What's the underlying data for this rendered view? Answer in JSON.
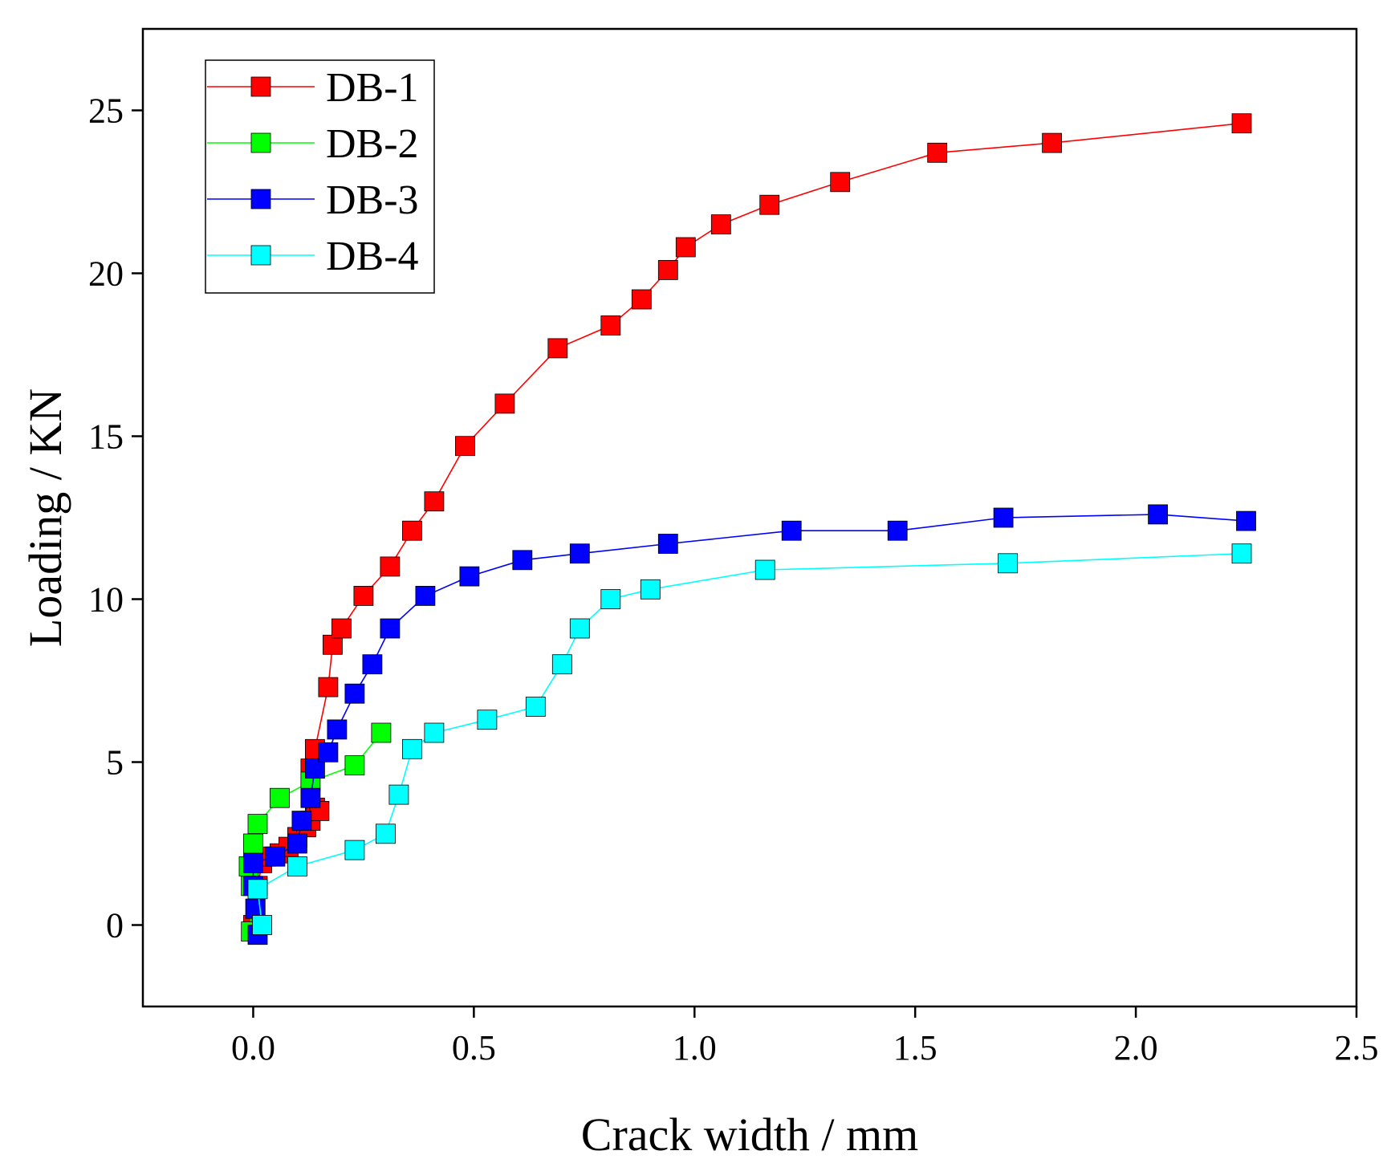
{
  "chart_data": {
    "type": "line",
    "title": "",
    "xlabel": "Crack width / mm",
    "ylabel": "Loading / KN",
    "xlim": [
      -0.25,
      2.5
    ],
    "ylim": [
      -2.5,
      27.5
    ],
    "xticks": [
      0.0,
      0.5,
      1.0,
      1.5,
      2.0,
      2.5
    ],
    "xtick_labels": [
      "0.0",
      "0.5",
      "1.0",
      "1.5",
      "2.0",
      "2.5"
    ],
    "yticks": [
      0,
      5,
      10,
      15,
      20,
      25
    ],
    "ytick_labels": [
      "0",
      "5",
      "10",
      "15",
      "20",
      "25"
    ],
    "grid": false,
    "legend_position": "top-left",
    "marker": "square",
    "series": [
      {
        "name": "DB-1",
        "color": "#ff0000",
        "x": [
          0.0,
          0.005,
          0.01,
          0.02,
          0.03,
          0.06,
          0.08,
          0.1,
          0.12,
          0.13,
          0.14,
          0.15,
          0.13,
          0.14,
          0.17,
          0.18,
          0.2,
          0.25,
          0.31,
          0.36,
          0.41,
          0.48,
          0.57,
          0.69,
          0.81,
          0.88,
          0.94,
          0.98,
          1.06,
          1.17,
          1.33,
          1.55,
          1.81,
          2.24
        ],
        "y": [
          0.0,
          0.5,
          1.2,
          1.9,
          2.1,
          2.2,
          2.4,
          2.7,
          3.0,
          3.2,
          3.6,
          3.5,
          4.8,
          5.4,
          7.3,
          8.6,
          9.1,
          10.1,
          11.0,
          12.1,
          13.0,
          14.7,
          16.0,
          17.7,
          18.4,
          19.2,
          20.1,
          20.8,
          21.5,
          22.1,
          22.8,
          23.7,
          24.0,
          24.6
        ]
      },
      {
        "name": "DB-2",
        "color": "#00ff00",
        "x": [
          -0.005,
          -0.005,
          -0.01,
          0.0,
          0.01,
          0.06,
          0.13,
          0.23,
          0.29
        ],
        "y": [
          -0.2,
          1.2,
          1.8,
          2.5,
          3.1,
          3.9,
          4.4,
          4.9,
          5.9
        ]
      },
      {
        "name": "DB-3",
        "color": "#0000ff",
        "x": [
          0.01,
          0.005,
          0.0,
          0.0,
          0.05,
          0.1,
          0.11,
          0.13,
          0.14,
          0.17,
          0.19,
          0.23,
          0.27,
          0.31,
          0.39,
          0.49,
          0.61,
          0.74,
          0.94,
          1.22,
          1.46,
          1.7,
          2.05,
          2.25
        ],
        "y": [
          -0.3,
          0.5,
          1.2,
          1.9,
          2.1,
          2.5,
          3.2,
          3.9,
          4.8,
          5.3,
          6.0,
          7.1,
          8.0,
          9.1,
          10.1,
          10.7,
          11.2,
          11.4,
          11.7,
          12.1,
          12.1,
          12.5,
          12.6,
          12.4
        ]
      },
      {
        "name": "DB-4",
        "color": "#00ffff",
        "x": [
          0.02,
          0.01,
          0.1,
          0.23,
          0.3,
          0.33,
          0.36,
          0.41,
          0.53,
          0.64,
          0.7,
          0.74,
          0.81,
          0.9,
          1.16,
          1.71,
          2.24
        ],
        "y": [
          0.0,
          1.1,
          1.8,
          2.3,
          2.8,
          4.0,
          5.4,
          5.9,
          6.3,
          6.7,
          8.0,
          9.1,
          10.0,
          10.3,
          10.9,
          11.1,
          11.4
        ]
      }
    ]
  }
}
